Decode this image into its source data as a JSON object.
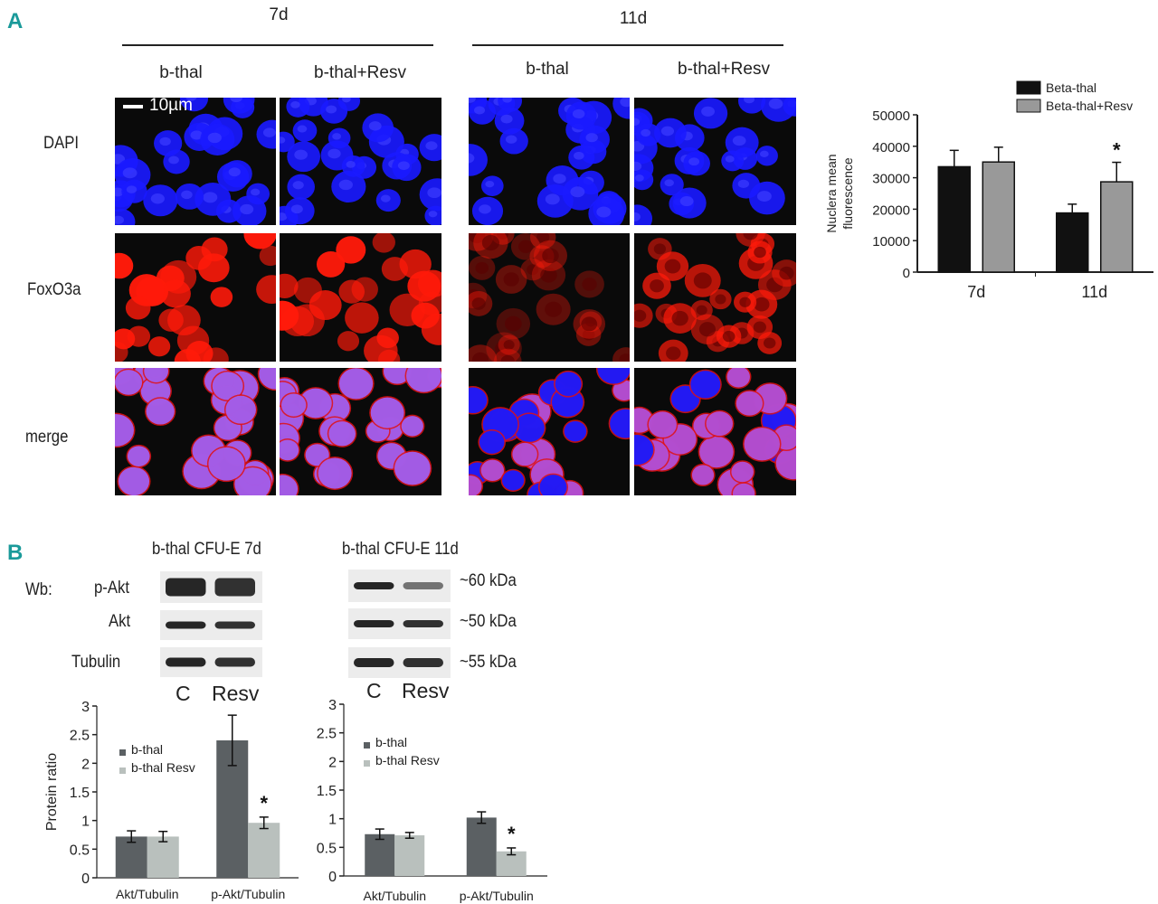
{
  "panelA": {
    "letter": "A",
    "time_7d": "7d",
    "time_11d": "11d",
    "col_bthal": "b-thal",
    "col_bthal_resv": "b-thal+Resv",
    "row_dapi": "DAPI",
    "row_foxo3a": "FoxO3a",
    "row_merge": "merge",
    "scale_bar": "10µm",
    "colors": {
      "dapi": "#1a1aff",
      "foxo": "#ff1a0a",
      "merge_nucleus": "#a060f0",
      "background": "#0a0a0a"
    }
  },
  "panelB": {
    "letter": "B",
    "blot_7d_title": "b-thal CFU-E 7d",
    "blot_11d_title": "b-thal CFU-E 11d",
    "wb_label": "Wb:",
    "row_pakt": "p-Akt",
    "row_akt": "Akt",
    "row_tubulin": "Tubulin",
    "lane_c": "C",
    "lane_resv": "Resv",
    "kda_60": "~60 kDa",
    "kda_50": "~50 kDa",
    "kda_55": "~55 kDa"
  },
  "chart_data": [
    {
      "type": "bar",
      "id": "nuclear-fluorescence",
      "ylabel": "Nuclera mean fluorescence",
      "xlabel": "",
      "categories": [
        "7d",
        "11d"
      ],
      "series": [
        {
          "name": "Beta-thal",
          "values": [
            33500,
            18800
          ],
          "errors": [
            5200,
            2800
          ],
          "color": "#111111"
        },
        {
          "name": "Beta-thal+Resv",
          "values": [
            35000,
            28700
          ],
          "errors": [
            4700,
            6200
          ],
          "color": "#999999"
        }
      ],
      "yticks": [
        "0",
        "10000",
        "20000",
        "30000",
        "40000",
        "50000"
      ],
      "ylim": [
        0,
        50000
      ],
      "significance": {
        "category": "11d",
        "series": "Beta-thal+Resv",
        "mark": "*"
      },
      "legend": "top-right"
    },
    {
      "type": "bar",
      "id": "protein-ratio-7d",
      "ylabel": "Protein ratio",
      "xlabel": "",
      "categories": [
        "Akt/Tubulin",
        "p-Akt/Tubulin"
      ],
      "series": [
        {
          "name": "b-thal",
          "values": [
            0.72,
            2.4
          ],
          "errors": [
            0.1,
            0.44
          ],
          "color": "#5b6063"
        },
        {
          "name": "b-thal Resv",
          "values": [
            0.72,
            0.96
          ],
          "errors": [
            0.09,
            0.1
          ],
          "color": "#b9c0bd"
        }
      ],
      "yticks": [
        "0",
        "0.5",
        "1",
        "1.5",
        "2",
        "2.5",
        "3"
      ],
      "ylim": [
        0,
        3
      ],
      "significance": {
        "category": "p-Akt/Tubulin",
        "series": "b-thal Resv",
        "mark": "*"
      },
      "legend": "top-left"
    },
    {
      "type": "bar",
      "id": "protein-ratio-11d",
      "ylabel": "",
      "xlabel": "",
      "categories": [
        "Akt/Tubulin",
        "p-Akt/Tubulin"
      ],
      "series": [
        {
          "name": "b-thal",
          "values": [
            0.73,
            1.02
          ],
          "errors": [
            0.09,
            0.1
          ],
          "color": "#5b6063"
        },
        {
          "name": "b-thal Resv",
          "values": [
            0.71,
            0.43
          ],
          "errors": [
            0.05,
            0.06
          ],
          "color": "#b9c0bd"
        }
      ],
      "yticks": [
        "0",
        "0.5",
        "1",
        "1.5",
        "2",
        "2.5",
        "3"
      ],
      "ylim": [
        0,
        3
      ],
      "significance": {
        "category": "p-Akt/Tubulin",
        "series": "b-thal Resv",
        "mark": "*"
      },
      "legend": "top-left"
    }
  ]
}
